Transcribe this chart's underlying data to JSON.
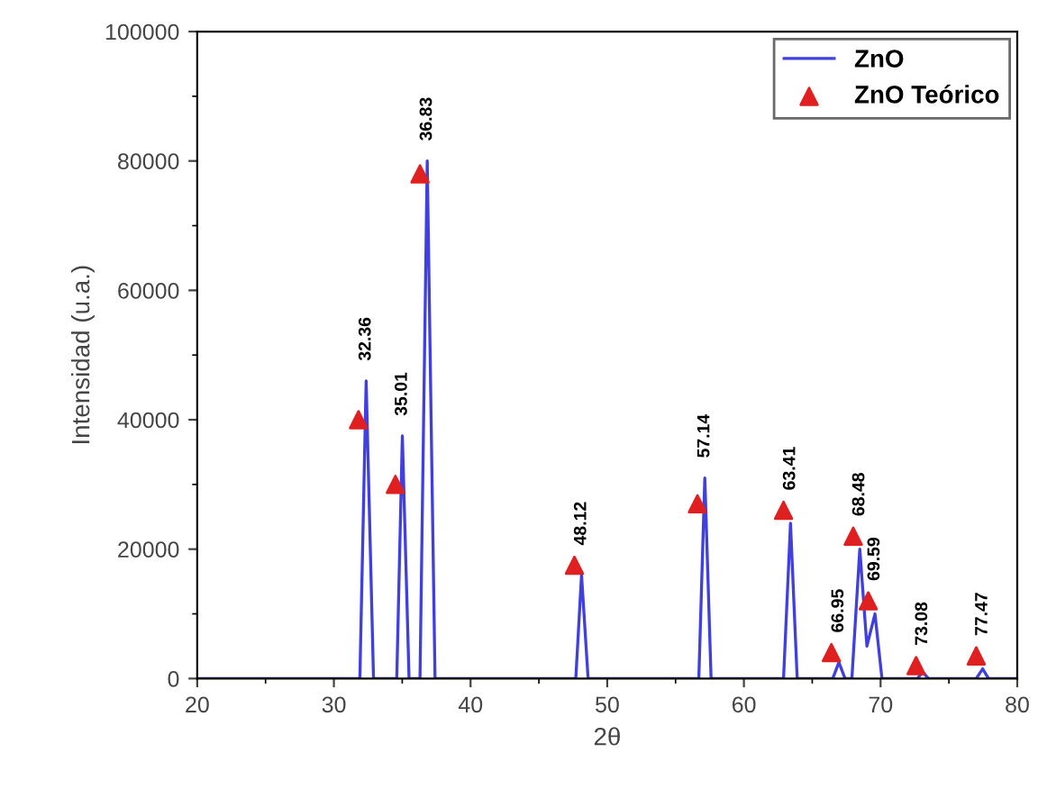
{
  "chart_data": {
    "type": "line",
    "xlabel": "2θ",
    "ylabel": "Intensidad (u.a.)",
    "xlim": [
      20,
      80
    ],
    "xticks": [
      20,
      30,
      40,
      50,
      60,
      70,
      80
    ],
    "ylim": [
      0,
      100000
    ],
    "yticks": [
      0,
      20000,
      40000,
      60000,
      80000,
      100000
    ],
    "grid": false,
    "legend": "top right",
    "series": [
      {
        "name": "ZnO",
        "color": "#4040e0",
        "marker": "none",
        "line_style": "solid",
        "x": [
          20,
          31.9,
          32.36,
          32.9,
          34.6,
          35.01,
          35.5,
          36.3,
          36.83,
          37.4,
          47.7,
          48.12,
          48.6,
          56.7,
          57.14,
          57.6,
          62.9,
          63.41,
          63.9,
          66.5,
          66.95,
          67.4,
          67.9,
          68.48,
          69.0,
          69.59,
          70.1,
          72.7,
          73.08,
          73.5,
          77.0,
          77.47,
          77.9,
          80
        ],
        "values": [
          0,
          0,
          46000,
          0,
          0,
          37500,
          0,
          0,
          80000,
          0,
          0,
          16000,
          0,
          0,
          31000,
          0,
          0,
          24000,
          0,
          0,
          2500,
          0,
          0,
          20000,
          5000,
          10000,
          0,
          0,
          1000,
          0,
          0,
          1500,
          0,
          0
        ]
      },
      {
        "name": "ZnO Teórico",
        "type": "scatter",
        "color": "#e02020",
        "marker": "triangle",
        "x": [
          31.8,
          34.5,
          36.3,
          47.6,
          56.6,
          62.9,
          66.4,
          68.0,
          69.1,
          72.6,
          77.0
        ],
        "values": [
          40000,
          30000,
          78000,
          17500,
          27000,
          26000,
          4000,
          22000,
          12000,
          2000,
          3500
        ]
      }
    ],
    "annotations": [
      {
        "text": "32.36",
        "x": 32.36,
        "y": 46000
      },
      {
        "text": "35.01",
        "x": 35.01,
        "y": 37500
      },
      {
        "text": "36.83",
        "x": 36.83,
        "y": 80000
      },
      {
        "text": "48.12",
        "x": 48.12,
        "y": 17500
      },
      {
        "text": "57.14",
        "x": 57.14,
        "y": 31000
      },
      {
        "text": "63.41",
        "x": 63.41,
        "y": 26000
      },
      {
        "text": "66.95",
        "x": 66.95,
        "y": 4000
      },
      {
        "text": "68.48",
        "x": 68.48,
        "y": 22000
      },
      {
        "text": "69.59",
        "x": 69.59,
        "y": 12000
      },
      {
        "text": "73.08",
        "x": 73.08,
        "y": 2000
      },
      {
        "text": "77.47",
        "x": 77.47,
        "y": 3500
      }
    ]
  }
}
